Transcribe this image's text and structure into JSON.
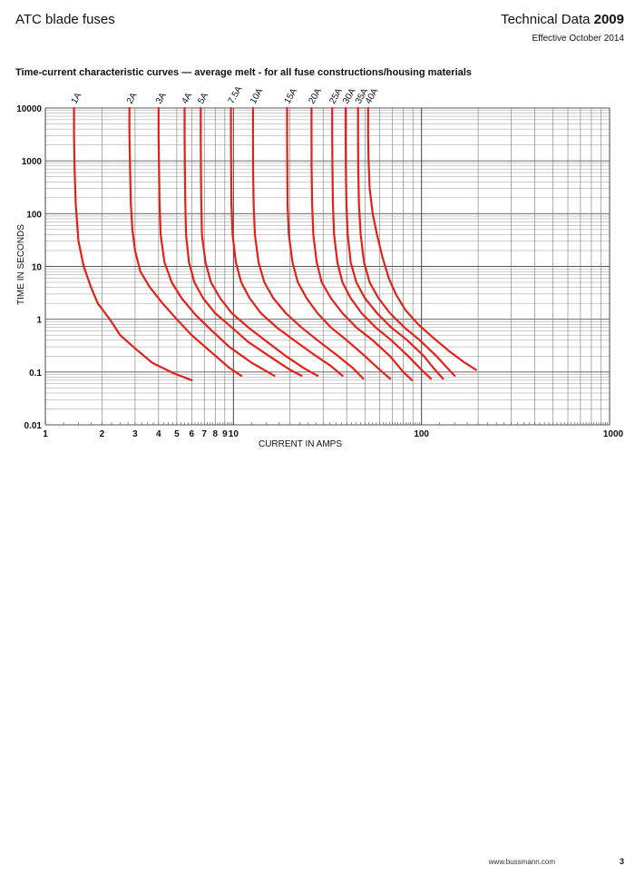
{
  "header": {
    "product_title": "ATC blade fuses",
    "doc_type": "Technical Data",
    "doc_number": "2009",
    "effective": "Effective October 2014"
  },
  "footer": {
    "url": "www.bussmann.com",
    "page": "3"
  },
  "chart_data": {
    "type": "line",
    "title": "Time-current characteristic curves — average melt - for all fuse constructions/housing materials",
    "xlabel": "CURRENT IN AMPS",
    "ylabel": "TIME IN SECONDS",
    "x_scale": "log",
    "y_scale": "log",
    "xlim": [
      1,
      1000
    ],
    "ylim": [
      0.01,
      10000
    ],
    "grid": true,
    "curve_color": "#e32119",
    "x_tick_labels": [
      {
        "value": 1,
        "label": "1"
      },
      {
        "value": 2,
        "label": "2"
      },
      {
        "value": 3,
        "label": "3"
      },
      {
        "value": 4,
        "label": "4"
      },
      {
        "value": 5,
        "label": "5"
      },
      {
        "value": 6,
        "label": "6"
      },
      {
        "value": 7,
        "label": "7"
      },
      {
        "value": 8,
        "label": "8"
      },
      {
        "value": 9,
        "label": "9"
      },
      {
        "value": 10,
        "label": "10"
      },
      {
        "value": 100,
        "label": "100"
      },
      {
        "value": 1000,
        "label": "1000"
      }
    ],
    "y_tick_labels": [
      {
        "value": 10000,
        "label": "10000"
      },
      {
        "value": 1000,
        "label": "1000"
      },
      {
        "value": 100,
        "label": "100"
      },
      {
        "value": 10,
        "label": "10"
      },
      {
        "value": 1,
        "label": "1"
      },
      {
        "value": 0.1,
        "label": "0.1"
      },
      {
        "value": 0.01,
        "label": "0.01"
      }
    ],
    "series": [
      {
        "name": "1A",
        "points": [
          [
            1.42,
            10000
          ],
          [
            1.42,
            3000
          ],
          [
            1.43,
            700
          ],
          [
            1.45,
            150
          ],
          [
            1.5,
            30
          ],
          [
            1.6,
            10
          ],
          [
            1.75,
            4
          ],
          [
            1.9,
            2
          ],
          [
            2.2,
            1
          ],
          [
            2.5,
            0.5
          ],
          [
            3.0,
            0.28
          ],
          [
            3.7,
            0.15
          ],
          [
            4.8,
            0.095
          ],
          [
            6.0,
            0.07
          ]
        ]
      },
      {
        "name": "2A",
        "points": [
          [
            2.8,
            10000
          ],
          [
            2.8,
            3000
          ],
          [
            2.82,
            700
          ],
          [
            2.85,
            150
          ],
          [
            2.9,
            50
          ],
          [
            3.0,
            20
          ],
          [
            3.2,
            8
          ],
          [
            3.6,
            4
          ],
          [
            4.2,
            2
          ],
          [
            5.0,
            1
          ],
          [
            6.0,
            0.5
          ],
          [
            7.5,
            0.25
          ],
          [
            9.5,
            0.12
          ],
          [
            11,
            0.085
          ]
        ]
      },
      {
        "name": "3A",
        "points": [
          [
            4.0,
            10000
          ],
          [
            4.0,
            3000
          ],
          [
            4.02,
            700
          ],
          [
            4.05,
            150
          ],
          [
            4.1,
            40
          ],
          [
            4.3,
            12
          ],
          [
            4.7,
            5
          ],
          [
            5.3,
            2.5
          ],
          [
            6.3,
            1.2
          ],
          [
            7.7,
            0.6
          ],
          [
            9.5,
            0.3
          ],
          [
            12.5,
            0.15
          ],
          [
            16.5,
            0.085
          ]
        ]
      },
      {
        "name": "4A",
        "points": [
          [
            5.5,
            10000
          ],
          [
            5.5,
            3000
          ],
          [
            5.52,
            700
          ],
          [
            5.55,
            150
          ],
          [
            5.6,
            40
          ],
          [
            5.8,
            12
          ],
          [
            6.2,
            5
          ],
          [
            6.9,
            2.5
          ],
          [
            8.0,
            1.3
          ],
          [
            9.8,
            0.7
          ],
          [
            12,
            0.37
          ],
          [
            15.5,
            0.2
          ],
          [
            20,
            0.11
          ],
          [
            23,
            0.085
          ]
        ]
      },
      {
        "name": "5A",
        "points": [
          [
            6.7,
            10000
          ],
          [
            6.7,
            3000
          ],
          [
            6.72,
            700
          ],
          [
            6.75,
            150
          ],
          [
            6.8,
            40
          ],
          [
            7.1,
            12
          ],
          [
            7.6,
            5
          ],
          [
            8.5,
            2.5
          ],
          [
            9.8,
            1.3
          ],
          [
            12,
            0.7
          ],
          [
            15,
            0.38
          ],
          [
            19,
            0.2
          ],
          [
            24,
            0.115
          ],
          [
            28,
            0.085
          ]
        ]
      },
      {
        "name": "7.5A",
        "points": [
          [
            9.7,
            10000
          ],
          [
            9.7,
            3000
          ],
          [
            9.72,
            700
          ],
          [
            9.75,
            150
          ],
          [
            9.9,
            40
          ],
          [
            10.3,
            12
          ],
          [
            11,
            5
          ],
          [
            12.2,
            2.5
          ],
          [
            14,
            1.3
          ],
          [
            17,
            0.7
          ],
          [
            21,
            0.4
          ],
          [
            27,
            0.21
          ],
          [
            33,
            0.13
          ],
          [
            38,
            0.085
          ]
        ]
      },
      {
        "name": "10A",
        "points": [
          [
            12.7,
            10000
          ],
          [
            12.7,
            3000
          ],
          [
            12.72,
            700
          ],
          [
            12.8,
            150
          ],
          [
            13,
            40
          ],
          [
            13.6,
            12
          ],
          [
            14.6,
            5
          ],
          [
            16.3,
            2.5
          ],
          [
            19,
            1.3
          ],
          [
            23,
            0.7
          ],
          [
            28,
            0.4
          ],
          [
            36,
            0.2
          ],
          [
            43,
            0.12
          ],
          [
            49,
            0.075
          ]
        ]
      },
      {
        "name": "15A",
        "points": [
          [
            19.3,
            10000
          ],
          [
            19.3,
            3000
          ],
          [
            19.33,
            700
          ],
          [
            19.4,
            150
          ],
          [
            19.7,
            40
          ],
          [
            20.6,
            12
          ],
          [
            22,
            5
          ],
          [
            24.5,
            2.5
          ],
          [
            28,
            1.3
          ],
          [
            33,
            0.7
          ],
          [
            40,
            0.4
          ],
          [
            50,
            0.2
          ],
          [
            60,
            0.11
          ],
          [
            68,
            0.075
          ]
        ]
      },
      {
        "name": "20A",
        "points": [
          [
            26,
            10000
          ],
          [
            26,
            3000
          ],
          [
            26.05,
            700
          ],
          [
            26.2,
            150
          ],
          [
            26.6,
            40
          ],
          [
            27.7,
            12
          ],
          [
            29.5,
            5
          ],
          [
            33,
            2.5
          ],
          [
            38,
            1.3
          ],
          [
            45,
            0.7
          ],
          [
            55,
            0.4
          ],
          [
            68,
            0.2
          ],
          [
            80,
            0.1
          ],
          [
            89,
            0.07
          ]
        ]
      },
      {
        "name": "25A",
        "points": [
          [
            33.5,
            10000
          ],
          [
            33.5,
            3000
          ],
          [
            33.6,
            700
          ],
          [
            33.8,
            150
          ],
          [
            34.3,
            40
          ],
          [
            35.7,
            12
          ],
          [
            38,
            5
          ],
          [
            42,
            2.5
          ],
          [
            48,
            1.3
          ],
          [
            57,
            0.7
          ],
          [
            69,
            0.4
          ],
          [
            85,
            0.2
          ],
          [
            100,
            0.11
          ],
          [
            112,
            0.075
          ]
        ]
      },
      {
        "name": "30A",
        "points": [
          [
            39.5,
            10000
          ],
          [
            39.5,
            3000
          ],
          [
            39.6,
            700
          ],
          [
            39.9,
            150
          ],
          [
            40.5,
            40
          ],
          [
            42,
            12
          ],
          [
            45,
            5
          ],
          [
            50,
            2.5
          ],
          [
            58,
            1.3
          ],
          [
            69,
            0.7
          ],
          [
            84,
            0.4
          ],
          [
            103,
            0.2
          ],
          [
            118,
            0.11
          ],
          [
            130,
            0.075
          ]
        ]
      },
      {
        "name": "35A",
        "points": [
          [
            46,
            10000
          ],
          [
            46,
            3000
          ],
          [
            46.1,
            700
          ],
          [
            46.5,
            150
          ],
          [
            47.5,
            40
          ],
          [
            49.5,
            12
          ],
          [
            53,
            5
          ],
          [
            59,
            2.5
          ],
          [
            68,
            1.3
          ],
          [
            81,
            0.7
          ],
          [
            98,
            0.4
          ],
          [
            120,
            0.2
          ],
          [
            137,
            0.12
          ],
          [
            150,
            0.085
          ]
        ]
      },
      {
        "name": "40A",
        "points": [
          [
            52,
            10000
          ],
          [
            52,
            3000
          ],
          [
            52.3,
            1000
          ],
          [
            53,
            300
          ],
          [
            55,
            100
          ],
          [
            58,
            40
          ],
          [
            62,
            15
          ],
          [
            67,
            6
          ],
          [
            73,
            3
          ],
          [
            82,
            1.5
          ],
          [
            96,
            0.8
          ],
          [
            115,
            0.45
          ],
          [
            140,
            0.25
          ],
          [
            170,
            0.15
          ],
          [
            195,
            0.11
          ]
        ]
      }
    ]
  }
}
